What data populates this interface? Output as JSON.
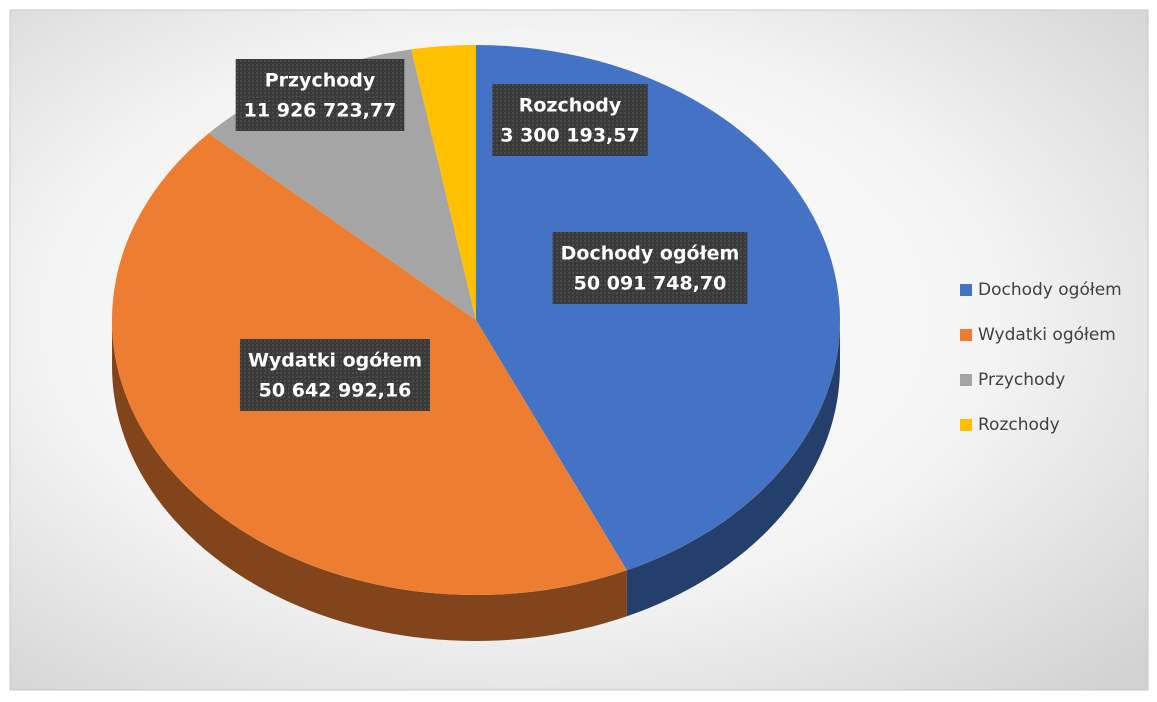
{
  "chart_data": {
    "type": "pie",
    "categories": [
      "Dochody ogółem",
      "Wydatki ogółem",
      "Przychody",
      "Rozchody"
    ],
    "values": [
      50091748.7,
      50642992.16,
      11926723.77,
      3300193.57
    ],
    "value_labels": [
      "50 091 748,70",
      "50 642 992,16",
      "11 926 723,77",
      "3 300 193,57"
    ],
    "colors": [
      "#4472c4",
      "#ed7d31",
      "#a5a5a5",
      "#ffc000"
    ],
    "legend": "right"
  }
}
